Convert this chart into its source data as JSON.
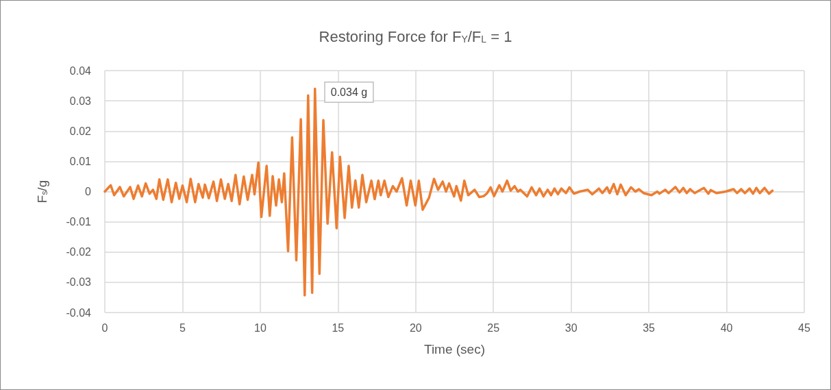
{
  "chart_data": {
    "type": "line",
    "title": "Restoring Force for F$_{Y}$/F$_{L}$ = 1",
    "xlabel": "Time (sec)",
    "ylabel": "F$_{s}$/g",
    "annotations": [
      {
        "text": "0.034 g",
        "x": 13.52,
        "y": 0.034
      }
    ],
    "series": [
      {
        "color": "#ed7d31",
        "x": [
          0,
          0.38,
          0.6,
          0.97,
          1.22,
          1.63,
          1.85,
          2.14,
          2.39,
          2.63,
          2.88,
          3.1,
          3.32,
          3.51,
          3.76,
          4.05,
          4.3,
          4.57,
          4.79,
          5.0,
          5.27,
          5.52,
          5.81,
          6.03,
          6.3,
          6.44,
          6.69,
          6.99,
          7.21,
          7.47,
          7.72,
          7.94,
          8.16,
          8.41,
          8.67,
          8.94,
          9.19,
          9.48,
          9.63,
          9.88,
          10.07,
          10.41,
          10.61,
          10.8,
          11.02,
          11.2,
          11.39,
          11.54,
          11.79,
          12.05,
          12.32,
          12.61,
          12.86,
          13.08,
          13.34,
          13.52,
          13.81,
          14.06,
          14.33,
          14.62,
          14.91,
          15.13,
          15.43,
          15.69,
          15.9,
          16.12,
          16.34,
          16.57,
          16.82,
          17.15,
          17.36,
          17.6,
          17.75,
          17.99,
          18.24,
          18.53,
          18.77,
          19.12,
          19.42,
          19.68,
          19.98,
          20.2,
          20.45,
          20.86,
          21.18,
          21.44,
          21.74,
          21.95,
          22.15,
          22.47,
          22.62,
          22.91,
          23.13,
          23.38,
          23.79,
          24.09,
          24.38,
          24.6,
          24.82,
          25.04,
          25.38,
          25.58,
          25.88,
          26.11,
          26.36,
          26.58,
          26.73,
          27.17,
          27.46,
          27.75,
          27.97,
          28.22,
          28.49,
          28.71,
          28.93,
          29.15,
          29.37,
          29.67,
          29.89,
          30.18,
          30.55,
          31.06,
          31.36,
          31.79,
          32.01,
          32.31,
          32.48,
          32.74,
          32.97,
          33.19,
          33.51,
          33.85,
          34.14,
          34.36,
          34.66,
          35.17,
          35.54,
          35.68,
          36.05,
          36.27,
          36.71,
          36.97,
          37.22,
          37.44,
          37.66,
          37.95,
          38.54,
          38.83,
          38.98,
          39.35,
          39.94,
          40.45,
          40.67,
          40.94,
          41.18,
          41.48,
          41.7,
          41.92,
          42.14,
          42.44,
          42.73,
          42.95
        ],
        "values": [
          0,
          0.0021,
          -0.0012,
          0.0015,
          -0.0016,
          0.0015,
          -0.0024,
          0.002,
          -0.0016,
          0.0027,
          -0.0007,
          0.0006,
          -0.0024,
          0.004,
          -0.0027,
          0.004,
          -0.0035,
          0.0029,
          -0.0024,
          0.002,
          -0.0035,
          0.0042,
          -0.0035,
          0.0025,
          -0.002,
          0.0023,
          -0.0022,
          0.0033,
          -0.0031,
          0.004,
          -0.0024,
          0.0025,
          -0.0031,
          0.0055,
          -0.0042,
          0.005,
          -0.0027,
          0.0055,
          -0.0009,
          0.0096,
          -0.0084,
          0.0085,
          -0.008,
          0.0051,
          -0.0046,
          0.004,
          -0.0035,
          0.006,
          -0.0197,
          0.0179,
          -0.0227,
          0.0239,
          -0.0343,
          0.0318,
          -0.0335,
          0.034,
          -0.0272,
          0.0236,
          -0.0106,
          0.013,
          -0.0121,
          0.0115,
          -0.0087,
          0.0085,
          -0.0053,
          0.0037,
          -0.0053,
          0.0055,
          -0.0035,
          0.0036,
          -0.0025,
          0.0036,
          -0.0012,
          0.0036,
          -0.0018,
          0.0018,
          0,
          0.0044,
          -0.0046,
          0.0036,
          -0.0046,
          0.0036,
          -0.006,
          -0.002,
          0.0042,
          0.0006,
          0.0033,
          0,
          0.0027,
          -0.0016,
          0.0018,
          -0.003,
          0.0036,
          -0.0012,
          0.0006,
          -0.0018,
          -0.0015,
          -0.0005,
          0.0014,
          -0.0015,
          0.0021,
          0,
          0.0036,
          0.0003,
          0.0018,
          0,
          0.0006,
          -0.0016,
          0.0014,
          -0.0012,
          0.001,
          -0.0016,
          0.0006,
          -0.0012,
          0.001,
          -0.0009,
          0.001,
          -0.0005,
          0.0014,
          -0.0007,
          0,
          0.0006,
          -0.0009,
          0.001,
          -0.0005,
          0.0014,
          -0.0005,
          0.0025,
          -0.0009,
          0.0023,
          -0.0012,
          0.0014,
          0,
          0.0008,
          -0.0005,
          -0.0012,
          0,
          -0.0007,
          0.0006,
          -0.0005,
          0.0015,
          -0.0003,
          0.0012,
          -0.0005,
          0.0008,
          -0.0005,
          0.0012,
          -0.0007,
          0.0005,
          -0.0005,
          0,
          0.0008,
          -0.0005,
          0.0008,
          -0.0005,
          0.001,
          -0.0007,
          0.0012,
          -0.0005,
          0.0012,
          -0.0007,
          0.0003
        ]
      }
    ],
    "xlim": [
      0,
      45
    ],
    "xticks": [
      0,
      5,
      10,
      15,
      20,
      25,
      30,
      35,
      40,
      45
    ],
    "ylim": [
      -0.04,
      0.04
    ],
    "yticks": [
      -0.04,
      -0.03,
      -0.02,
      -0.01,
      0,
      0.01,
      0.02,
      0.03,
      0.04
    ],
    "grid": true,
    "marker": "none",
    "line_style": "solid"
  }
}
